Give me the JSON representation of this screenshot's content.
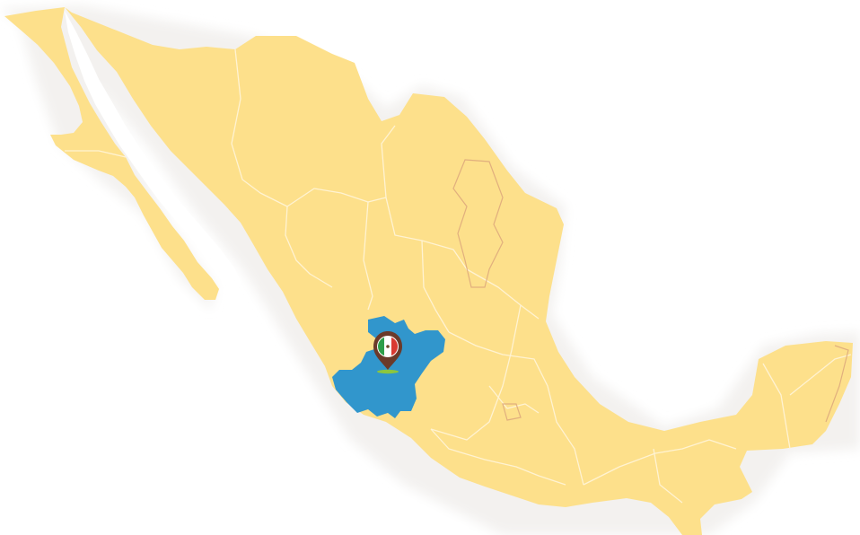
{
  "map": {
    "country": "Mexico",
    "highlighted_region": "Jalisco",
    "marker_icon": "mexico-flag-pin-icon",
    "colors": {
      "land": "#fde08b",
      "highlight": "#3196cc",
      "halo": "#f2f0ee",
      "pin": "#6b3a2a",
      "flag_green": "#2e9e4a",
      "flag_white": "#ffffff",
      "flag_red": "#d93a32",
      "pin_base": "#8cc63f"
    }
  }
}
